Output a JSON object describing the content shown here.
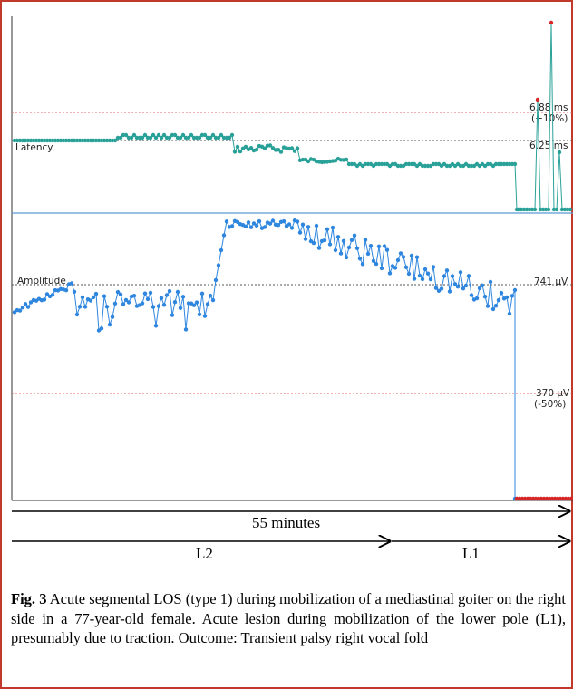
{
  "chart_data": {
    "type": "scatter",
    "panels": [
      {
        "name": "Latency",
        "label": "Latency",
        "unit": "ms",
        "reference_lines": [
          {
            "value": 6.88,
            "label_main": "6.88 ms",
            "label_sub": "(+10%)",
            "color": "#d62728"
          },
          {
            "value": 6.25,
            "label_main": "6.25 ms",
            "label_sub": "",
            "color": "#333333"
          }
        ],
        "color": "#2aa198"
      },
      {
        "name": "Amplitude",
        "label": "Amplitude",
        "unit": "µV",
        "reference_lines": [
          {
            "value": 741,
            "label_main": "741 µV",
            "label_sub": "",
            "color": "#333333"
          },
          {
            "value": 370,
            "label_main": "370 µV",
            "label_sub": "(-50%)",
            "color": "#d62728"
          }
        ],
        "color": "#2e86de"
      }
    ],
    "timeline": {
      "total": "55 minutes",
      "phases": [
        {
          "label": "L2"
        },
        {
          "label": "L1"
        }
      ]
    }
  },
  "caption": {
    "fig": "Fig. 3",
    "text": "Acute segmental LOS (type 1) during mobilization of a mediastinal goiter on the right side in a 77-year-old female. Acute lesion during mobilization of the lower pole (L1), presumably due to traction. Outcome: Transient palsy right vocal fold"
  }
}
